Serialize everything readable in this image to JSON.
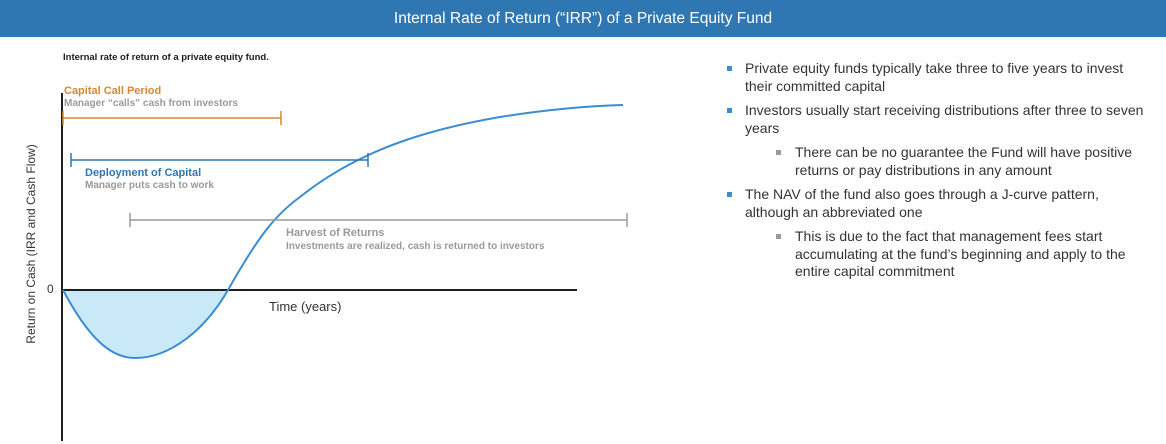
{
  "header": {
    "title": "Internal Rate of Return (“IRR”) of a Private Equity Fund"
  },
  "diagram": {
    "subtitle": "Internal rate of return of a private equity fund.",
    "y_axis_label": "Return on Cash (IRR and Cash Flow)",
    "zero_tick": "0",
    "x_axis_label": "Time (years)",
    "phases": [
      {
        "title": "Capital Call Period",
        "subtitle": "Manager “calls” cash from investors",
        "color": "#d6892e"
      },
      {
        "title": "Deployment of Capital",
        "subtitle": "Manager puts cash to work",
        "color": "#2e77b3"
      },
      {
        "title": "Harvest of Returns",
        "subtitle": "Investments are realized, cash is returned to investors",
        "color": "#9a9a9a"
      }
    ],
    "curve_color": "#3a8dd3",
    "fill_color": "#c9e8f8"
  },
  "bullets": [
    {
      "level": 1,
      "text": "Private equity funds typically take three to five years to invest their committed capital"
    },
    {
      "level": 1,
      "text": "Investors usually start receiving distributions after three to seven years"
    },
    {
      "level": 2,
      "text": "There can be no guarantee the Fund will have positive returns or pay distributions in any amount"
    },
    {
      "level": 1,
      "text": "The NAV of the fund also goes through a J-curve pattern, although an abbreviated one"
    },
    {
      "level": 2,
      "text": "This is due to the fact that management fees start accumulating at the fund’s beginning and apply to the entire capital commitment"
    }
  ]
}
